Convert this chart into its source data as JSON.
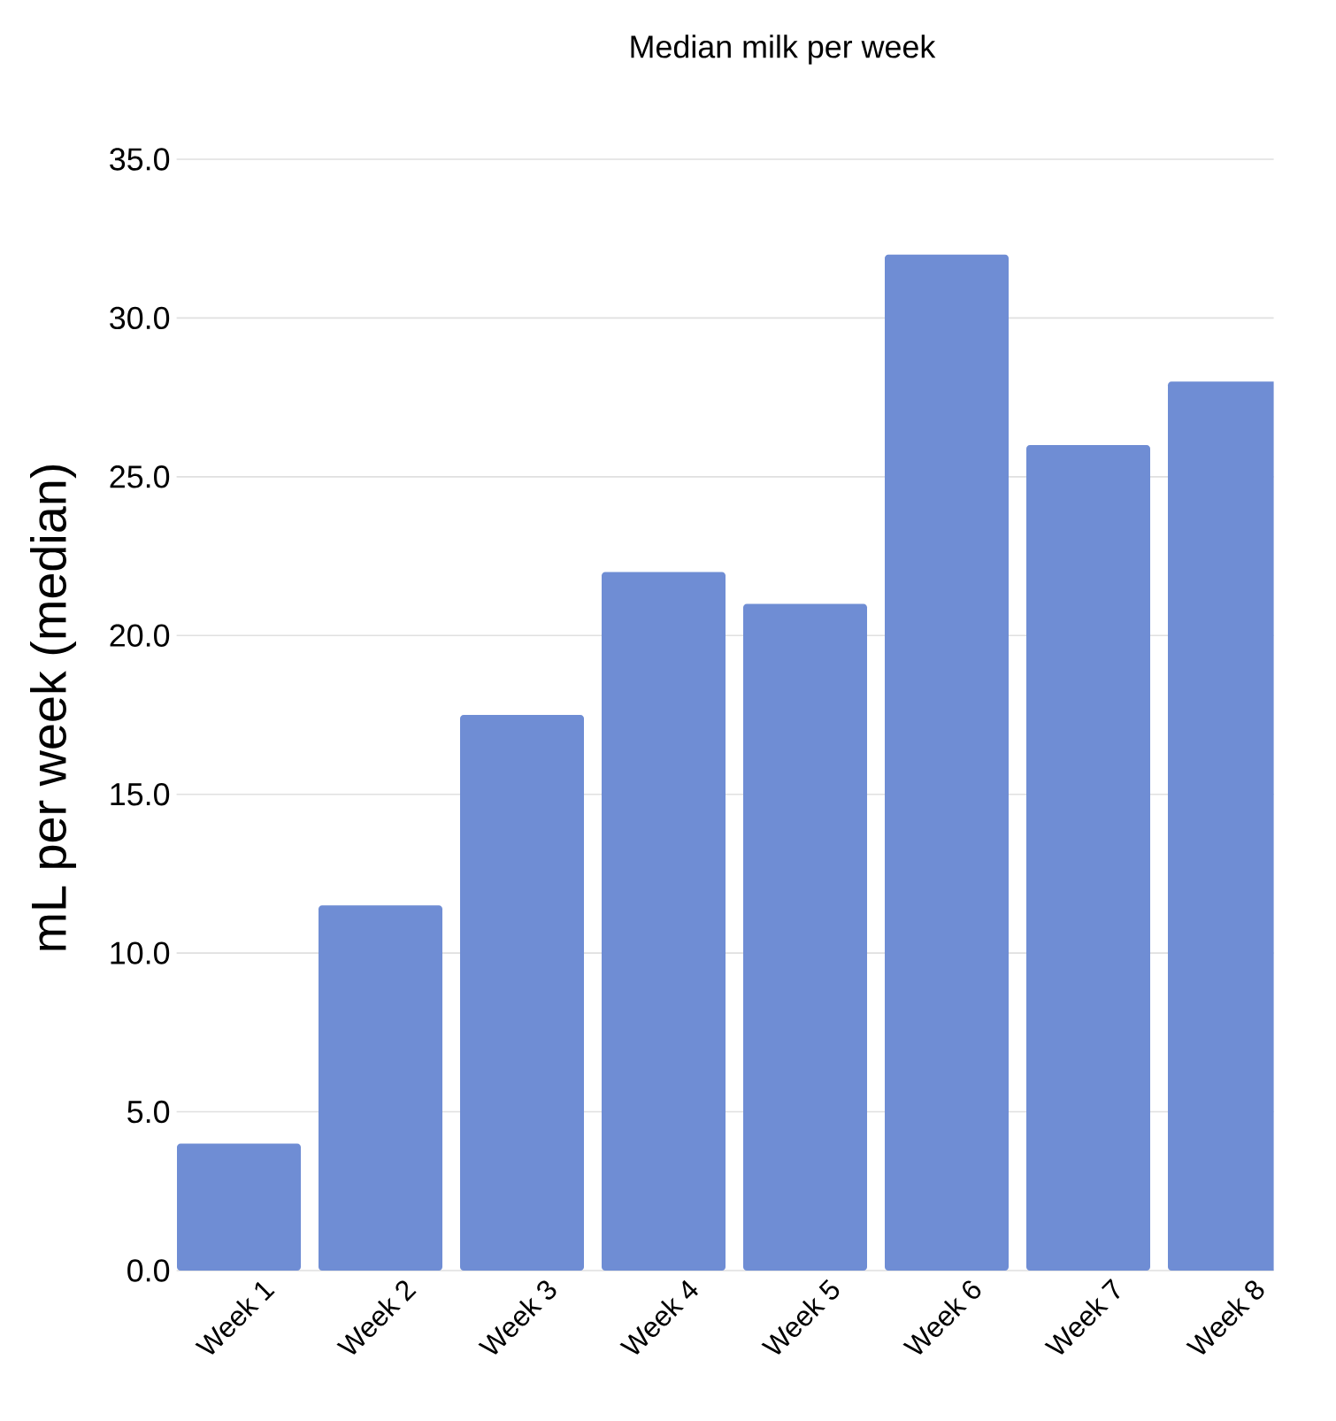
{
  "chart_data": {
    "type": "bar",
    "title": "Median milk per week",
    "ylabel": "mL per week (median)",
    "categories": [
      "Week 1",
      "Week 2",
      "Week 3",
      "Week 4",
      "Week 5",
      "Week 6",
      "Week 7",
      "Week 8"
    ],
    "values": [
      4.0,
      11.5,
      17.5,
      22.0,
      21.0,
      32.0,
      26.0,
      28.0
    ],
    "color": "#6f8dd4",
    "ylim": [
      0,
      35
    ],
    "yticks": [
      {
        "value": 0,
        "label": "0.0"
      },
      {
        "value": 5,
        "label": "5.0"
      },
      {
        "value": 10,
        "label": "10.0"
      },
      {
        "value": 15,
        "label": "15.0"
      },
      {
        "value": 20,
        "label": "20.0"
      },
      {
        "value": 25,
        "label": "25.0"
      },
      {
        "value": 30,
        "label": "30.0"
      },
      {
        "value": 35,
        "label": "35.0"
      }
    ],
    "grid": "y"
  }
}
